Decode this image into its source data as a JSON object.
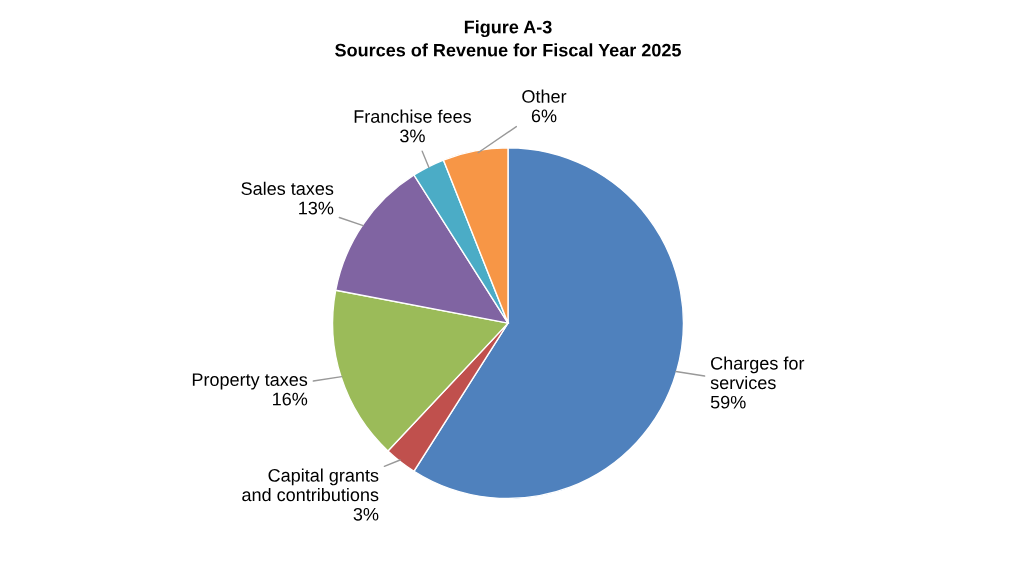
{
  "chart_data": {
    "type": "pie",
    "title": "Figure A-3",
    "subtitle": "Sources of Revenue for Fiscal Year 2025",
    "categories": [
      "Charges for\nservices",
      "Capital grants\nand contributions",
      "Property taxes",
      "Sales taxes",
      "Franchise fees",
      "Other"
    ],
    "values": [
      59,
      3,
      16,
      13,
      3,
      6
    ],
    "value_labels": [
      "59%",
      "3%",
      "16%",
      "13%",
      "3%",
      "6%"
    ],
    "colors": [
      "#4f81bd",
      "#c0504d",
      "#9bbb59",
      "#8064a2",
      "#4bacc6",
      "#f79646"
    ],
    "legend": false
  }
}
